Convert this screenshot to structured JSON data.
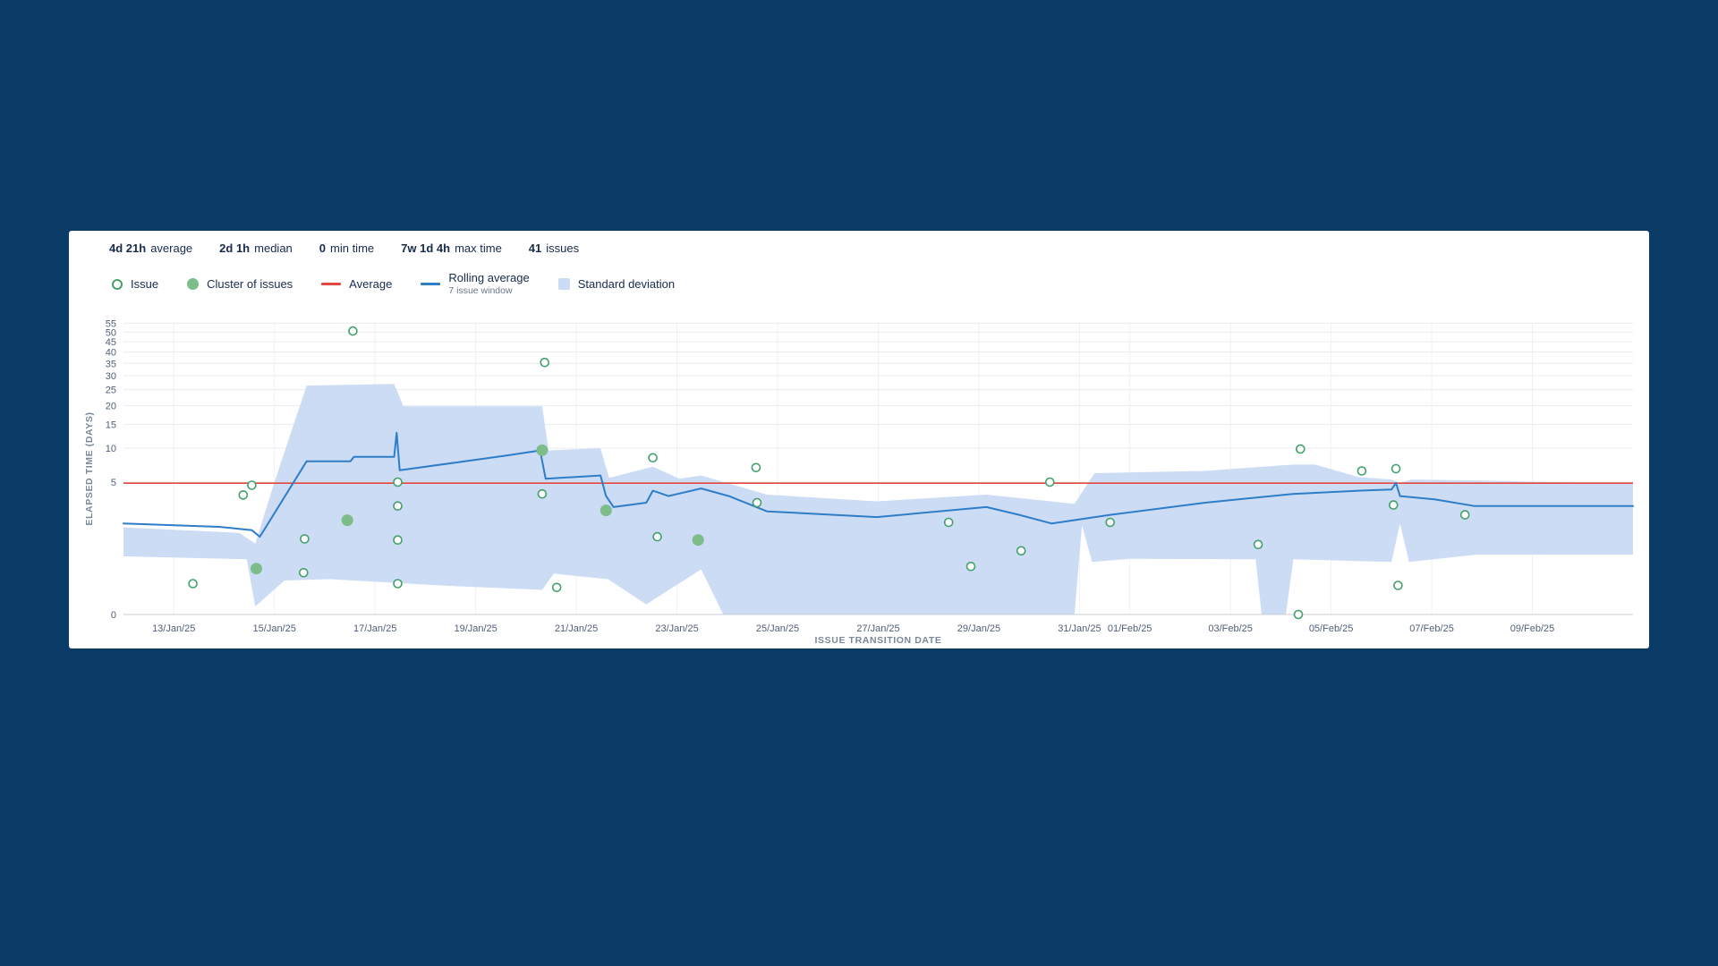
{
  "page": {
    "background": "#0a3a66",
    "card_background": "#ffffff"
  },
  "stats": [
    {
      "value": "4d 21h",
      "label": "average"
    },
    {
      "value": "2d 1h",
      "label": "median"
    },
    {
      "value": "0",
      "label": "min time"
    },
    {
      "value": "7w 1d 4h",
      "label": "max time"
    },
    {
      "value": "41",
      "label": "issues"
    }
  ],
  "legend": [
    {
      "label": "Issue"
    },
    {
      "label": "Cluster of issues"
    },
    {
      "label": "Average"
    },
    {
      "label": "Rolling average",
      "sublabel": "7 issue window"
    },
    {
      "label": "Standard deviation"
    }
  ],
  "colors": {
    "issue": "#44a06b",
    "cluster": "#7cbd8a",
    "average": "#e2483d",
    "rolling": "#2e7dc8",
    "band": "#ccdcf5",
    "grid": "#ebecf0",
    "grid_vertical": "#f0f1f4",
    "baseline": "#c9ced6",
    "tick_text": "#505f79",
    "axis_title_text": "#7a869a"
  },
  "chart_data": {
    "type": "scatter",
    "title": "",
    "xlabel": "ISSUE TRANSITION DATE",
    "ylabel": "ELAPSED TIME (DAYS)",
    "x_axis": {
      "domain_days": [
        0,
        30
      ],
      "domain_note": "day 0 = 12/Jan/25, day 30 = 11/Feb/25, linear time scale",
      "ticks": [
        {
          "day": 1,
          "label": "13/Jan/25"
        },
        {
          "day": 3,
          "label": "15/Jan/25"
        },
        {
          "day": 5,
          "label": "17/Jan/25"
        },
        {
          "day": 7,
          "label": "19/Jan/25"
        },
        {
          "day": 9,
          "label": "21/Jan/25"
        },
        {
          "day": 11,
          "label": "23/Jan/25"
        },
        {
          "day": 13,
          "label": "25/Jan/25"
        },
        {
          "day": 15,
          "label": "27/Jan/25"
        },
        {
          "day": 17,
          "label": "29/Jan/25"
        },
        {
          "day": 19,
          "label": "31/Jan/25"
        },
        {
          "day": 20,
          "label": "01/Feb/25"
        },
        {
          "day": 22,
          "label": "03/Feb/25"
        },
        {
          "day": 24,
          "label": "05/Feb/25"
        },
        {
          "day": 26,
          "label": "07/Feb/25"
        },
        {
          "day": 28,
          "label": "09/Feb/25"
        }
      ]
    },
    "y_axis": {
      "ticks": [
        0,
        5,
        10,
        15,
        20,
        25,
        30,
        35,
        40,
        45,
        50,
        55
      ],
      "scale": "power (cube-root-like), non-linear"
    },
    "average_days": 4.88,
    "issues": [
      [
        1.38,
        0.06
      ],
      [
        2.38,
        3.66
      ],
      [
        2.55,
        4.65
      ],
      [
        3.58,
        0.15
      ],
      [
        3.6,
        0.91
      ],
      [
        4.56,
        50.6
      ],
      [
        5.45,
        5.0
      ],
      [
        5.45,
        2.73
      ],
      [
        5.45,
        0.87
      ],
      [
        5.45,
        0.06
      ],
      [
        8.32,
        3.76
      ],
      [
        8.37,
        35.4
      ],
      [
        8.61,
        0.04
      ],
      [
        10.52,
        8.35
      ],
      [
        10.61,
        0.99
      ],
      [
        12.57,
        6.85
      ],
      [
        12.59,
        2.99
      ],
      [
        16.4,
        1.66
      ],
      [
        16.84,
        0.23
      ],
      [
        17.84,
        0.54
      ],
      [
        18.41,
        5.0
      ],
      [
        19.61,
        1.66
      ],
      [
        22.55,
        0.72
      ],
      [
        23.35,
        0.0
      ],
      [
        23.39,
        9.85
      ],
      [
        24.61,
        6.4
      ],
      [
        25.24,
        2.81
      ],
      [
        25.29,
        6.7
      ],
      [
        25.33,
        0.05
      ],
      [
        26.66,
        2.11
      ]
    ],
    "clusters": [
      [
        2.64,
        0.2
      ],
      [
        4.45,
        1.78
      ],
      [
        8.32,
        9.63
      ],
      [
        9.59,
        2.41
      ],
      [
        11.42,
        0.87
      ]
    ],
    "rolling_average": [
      [
        0,
        1.6
      ],
      [
        1.9,
        1.43
      ],
      [
        2.55,
        1.27
      ],
      [
        2.71,
        0.99
      ],
      [
        3.64,
        7.8
      ],
      [
        4.51,
        7.8
      ],
      [
        4.58,
        8.5
      ],
      [
        5.38,
        8.5
      ],
      [
        5.43,
        13.1
      ],
      [
        5.49,
        6.5
      ],
      [
        6.7,
        7.7
      ],
      [
        7.6,
        8.7
      ],
      [
        8.28,
        9.6
      ],
      [
        8.39,
        5.4
      ],
      [
        9.48,
        5.8
      ],
      [
        9.59,
        3.56
      ],
      [
        9.74,
        2.65
      ],
      [
        10.39,
        2.99
      ],
      [
        10.52,
        4.08
      ],
      [
        10.83,
        3.56
      ],
      [
        11.48,
        4.31
      ],
      [
        12.03,
        3.56
      ],
      [
        12.79,
        2.34
      ],
      [
        14.97,
        1.97
      ],
      [
        17.15,
        2.65
      ],
      [
        17.8,
        2.11
      ],
      [
        18.45,
        1.6
      ],
      [
        19.61,
        2.11
      ],
      [
        21.5,
        2.99
      ],
      [
        23.24,
        3.76
      ],
      [
        24.55,
        4.08
      ],
      [
        25.2,
        4.2
      ],
      [
        25.29,
        4.9
      ],
      [
        25.37,
        3.56
      ],
      [
        26.07,
        3.26
      ],
      [
        26.84,
        2.73
      ],
      [
        30,
        2.73
      ]
    ],
    "std_deviation_band": {
      "upper": [
        [
          0,
          1.4
        ],
        [
          2.3,
          1.15
        ],
        [
          2.62,
          0.75
        ],
        [
          3.0,
          5.0
        ],
        [
          3.64,
          26.4
        ],
        [
          5.38,
          27.0
        ],
        [
          5.56,
          19.8
        ],
        [
          8.32,
          19.8
        ],
        [
          8.45,
          9.6
        ],
        [
          9.48,
          10.0
        ],
        [
          9.65,
          5.5
        ],
        [
          10.52,
          7.0
        ],
        [
          11.05,
          5.4
        ],
        [
          11.48,
          5.8
        ],
        [
          12.79,
          3.7
        ],
        [
          14.97,
          3.1
        ],
        [
          17.15,
          3.7
        ],
        [
          18.9,
          2.9
        ],
        [
          19.3,
          6.1
        ],
        [
          21.5,
          6.4
        ],
        [
          23.24,
          7.3
        ],
        [
          23.68,
          7.3
        ],
        [
          24.55,
          5.6
        ],
        [
          25.2,
          5.3
        ],
        [
          25.37,
          4.9
        ],
        [
          25.6,
          5.3
        ],
        [
          26.9,
          5.2
        ],
        [
          30,
          4.8
        ]
      ],
      "lower": [
        [
          0,
          0.41
        ],
        [
          2.45,
          0.35
        ],
        [
          2.62,
          0.001
        ],
        [
          3.2,
          0.08
        ],
        [
          4.1,
          0.09
        ],
        [
          6.3,
          0.05
        ],
        [
          8.32,
          0.03
        ],
        [
          8.55,
          0.14
        ],
        [
          9.63,
          0.09
        ],
        [
          10.39,
          0.002
        ],
        [
          11.48,
          0.19
        ],
        [
          11.92,
          0
        ],
        [
          18.9,
          0
        ],
        [
          19.05,
          1.5
        ],
        [
          19.25,
          0.3
        ],
        [
          20,
          0.36
        ],
        [
          22.5,
          0.35
        ],
        [
          22.62,
          0
        ],
        [
          23.1,
          0
        ],
        [
          23.25,
          0.35
        ],
        [
          25.2,
          0.3
        ],
        [
          25.37,
          1.6
        ],
        [
          25.55,
          0.3
        ],
        [
          26.9,
          0.45
        ],
        [
          30,
          0.45
        ]
      ]
    }
  }
}
